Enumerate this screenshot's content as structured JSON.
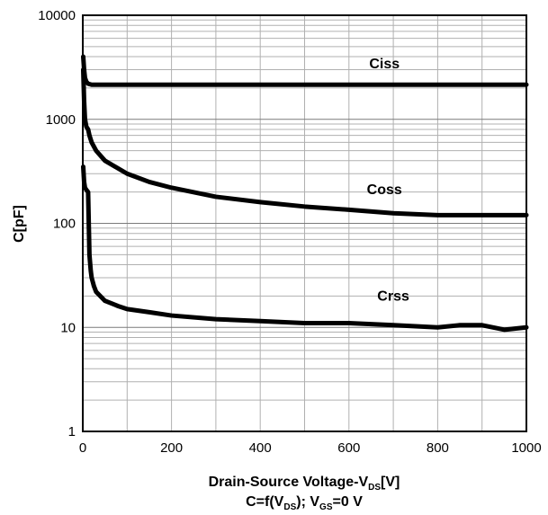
{
  "chart_data": {
    "type": "line",
    "x_scale": "linear",
    "y_scale": "log",
    "xlim": [
      0,
      1000
    ],
    "ylim": [
      1,
      10000
    ],
    "x_ticks": [
      0,
      200,
      400,
      600,
      800,
      1000
    ],
    "x_tick_labels": [
      "0",
      "200",
      "400",
      "600",
      "800",
      "1000"
    ],
    "y_ticks": [
      1,
      10,
      100,
      1000,
      10000
    ],
    "y_tick_labels": [
      "1",
      "10",
      "100",
      "1000",
      "10000"
    ],
    "grid": true,
    "ylabel": "C[pF]",
    "xlabel": {
      "before": "Drain-Source Voltage-V",
      "sub": "DS",
      "after": "[V]"
    },
    "caption": {
      "part1": "C=f(V",
      "sub1": "DS",
      "part2": "); V",
      "sub2": "GS",
      "part3": "=0 V"
    },
    "series": [
      {
        "name": "Ciss",
        "x": [
          1,
          3,
          5,
          8,
          12,
          20,
          40,
          100,
          200,
          400,
          600,
          800,
          1000
        ],
        "y": [
          4000,
          3000,
          2500,
          2300,
          2200,
          2150,
          2150,
          2150,
          2150,
          2150,
          2150,
          2150,
          2150
        ]
      },
      {
        "name": "Coss",
        "x": [
          1,
          3,
          5,
          8,
          12,
          15,
          20,
          30,
          50,
          100,
          150,
          200,
          300,
          400,
          500,
          600,
          700,
          800,
          900,
          1000
        ],
        "y": [
          3000,
          1500,
          1000,
          850,
          800,
          700,
          600,
          500,
          400,
          300,
          250,
          220,
          180,
          160,
          145,
          135,
          125,
          120,
          120,
          120
        ]
      },
      {
        "name": "Crss",
        "x": [
          1,
          3,
          5,
          8,
          12,
          15,
          18,
          20,
          25,
          30,
          50,
          80,
          100,
          150,
          200,
          300,
          400,
          500,
          600,
          700,
          800,
          850,
          900,
          950,
          1000
        ],
        "y": [
          350,
          250,
          220,
          210,
          200,
          50,
          35,
          30,
          25,
          22,
          18,
          16,
          15,
          14,
          13,
          12,
          11.5,
          11,
          11,
          10.5,
          10,
          10.5,
          10.5,
          9.5,
          10
        ]
      }
    ],
    "annotations": [
      {
        "text": "Ciss",
        "x": 680,
        "y": 3100
      },
      {
        "text": "Coss",
        "x": 680,
        "y": 190
      },
      {
        "text": "Crss",
        "x": 700,
        "y": 18
      }
    ]
  }
}
